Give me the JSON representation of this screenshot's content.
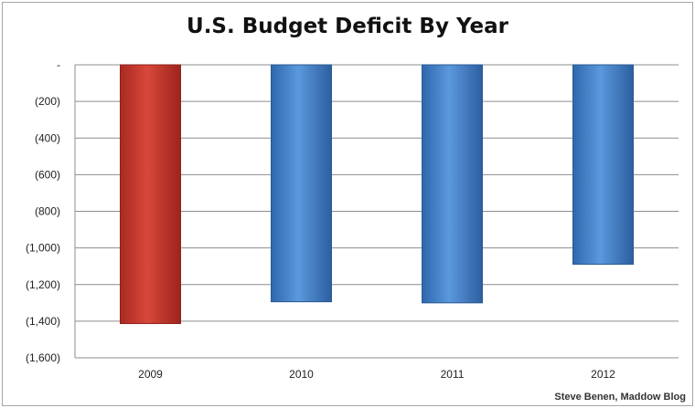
{
  "chart_data": {
    "type": "bar",
    "title": "U.S. Budget Deficit By Year",
    "categories": [
      "2009",
      "2010",
      "2011",
      "2012"
    ],
    "values": [
      -1413,
      -1294,
      -1300,
      -1089
    ],
    "bar_colors": [
      "#c0392b",
      "#3f7fc9",
      "#3f7fc9",
      "#3f7fc9"
    ],
    "ylim": [
      -1600,
      0
    ],
    "yticks": [
      0,
      -200,
      -400,
      -600,
      -800,
      -1000,
      -1200,
      -1400,
      -1600
    ],
    "ytick_labels": [
      "-",
      "(200)",
      "(400)",
      "(600)",
      "(800)",
      "(1,000)",
      "(1,200)",
      "(1,400)",
      "(1,600)"
    ],
    "grid": true,
    "legend": false
  },
  "credit": "Steve Benen, Maddow Blog"
}
